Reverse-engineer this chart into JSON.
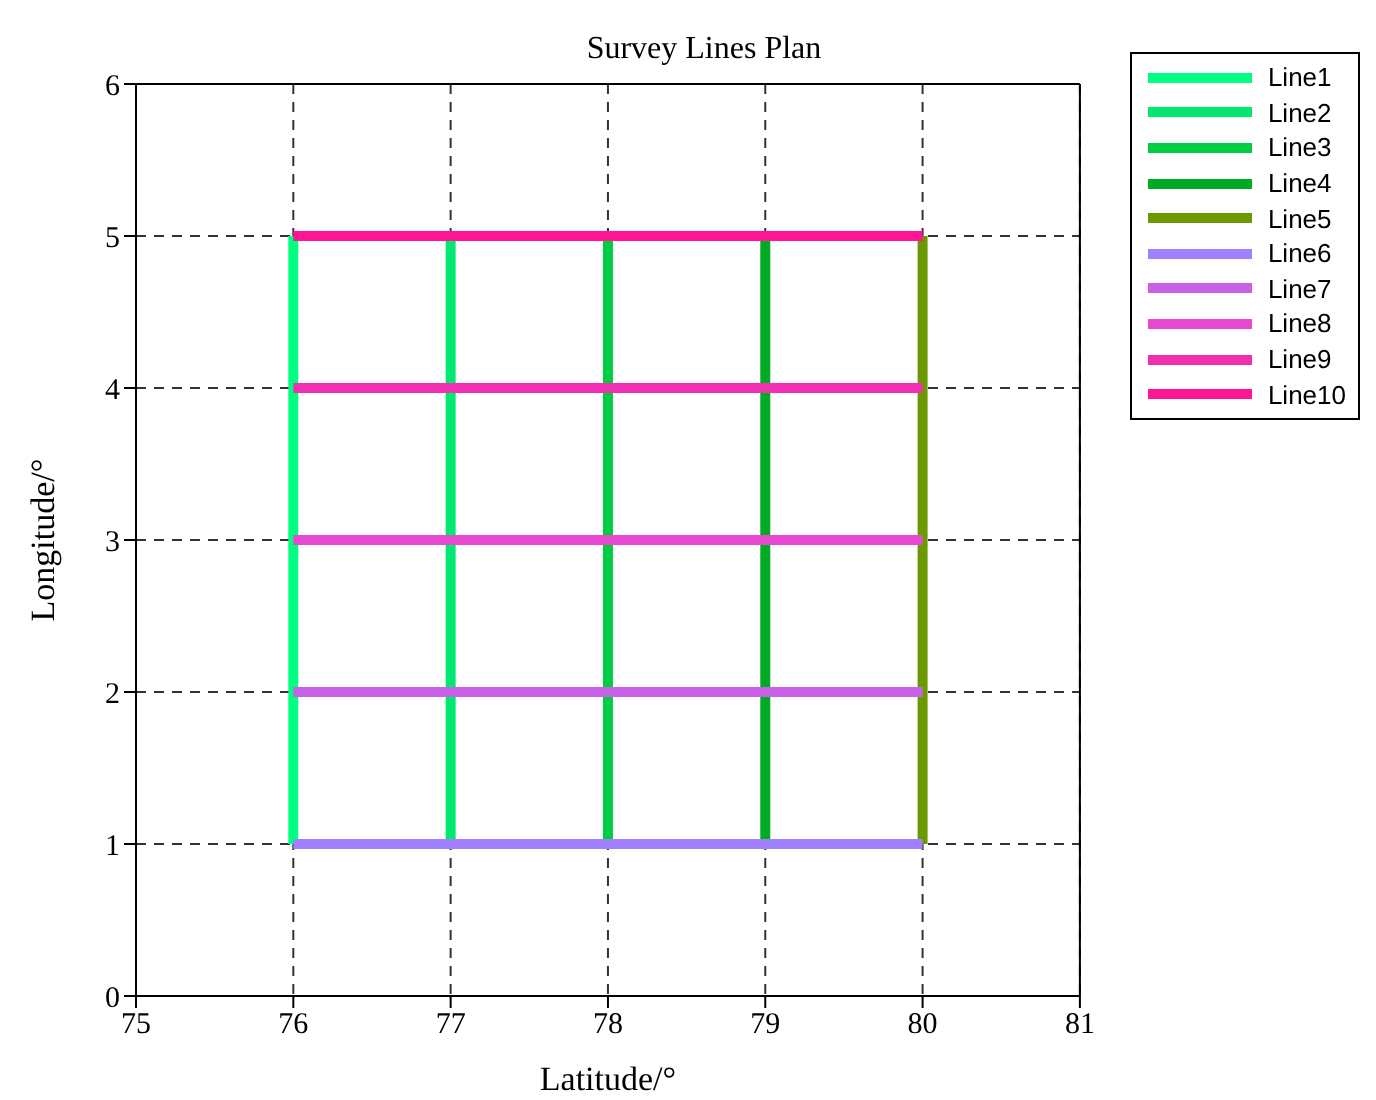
{
  "chart_data": {
    "type": "line",
    "title": "Survey Lines Plan",
    "xlabel": "Latitude/°",
    "ylabel": "Longitude/°",
    "xlim": [
      75,
      81
    ],
    "xticks": [
      75,
      76,
      77,
      78,
      79,
      80,
      81
    ],
    "ylim": [
      0,
      6
    ],
    "yticks": [
      0,
      1,
      2,
      3,
      4,
      5,
      6
    ],
    "grid": true,
    "legend": "top right",
    "line_style": "solid",
    "marker": "none",
    "series": [
      {
        "name": "Line1",
        "color": "#00ff80",
        "x": [
          76,
          76
        ],
        "values": [
          1,
          5
        ]
      },
      {
        "name": "Line2",
        "color": "#00e870",
        "x": [
          77,
          77
        ],
        "values": [
          1,
          5
        ]
      },
      {
        "name": "Line3",
        "color": "#00cc44",
        "x": [
          78,
          78
        ],
        "values": [
          1,
          5
        ]
      },
      {
        "name": "Line4",
        "color": "#00aa22",
        "x": [
          79,
          79
        ],
        "values": [
          1,
          5
        ]
      },
      {
        "name": "Line5",
        "color": "#6b9900",
        "x": [
          80,
          80
        ],
        "values": [
          1,
          5
        ]
      },
      {
        "name": "Line6",
        "color": "#a080ff",
        "x": [
          76,
          80
        ],
        "values": [
          1,
          1
        ]
      },
      {
        "name": "Line7",
        "color": "#c860e8",
        "x": [
          76,
          80
        ],
        "values": [
          2,
          2
        ]
      },
      {
        "name": "Line8",
        "color": "#e848d0",
        "x": [
          76,
          80
        ],
        "values": [
          3,
          3
        ]
      },
      {
        "name": "Line9",
        "color": "#f030b0",
        "x": [
          76,
          80
        ],
        "values": [
          4,
          4
        ]
      },
      {
        "name": "Line10",
        "color": "#ff1493",
        "x": [
          76,
          80
        ],
        "values": [
          5,
          5
        ]
      }
    ]
  }
}
